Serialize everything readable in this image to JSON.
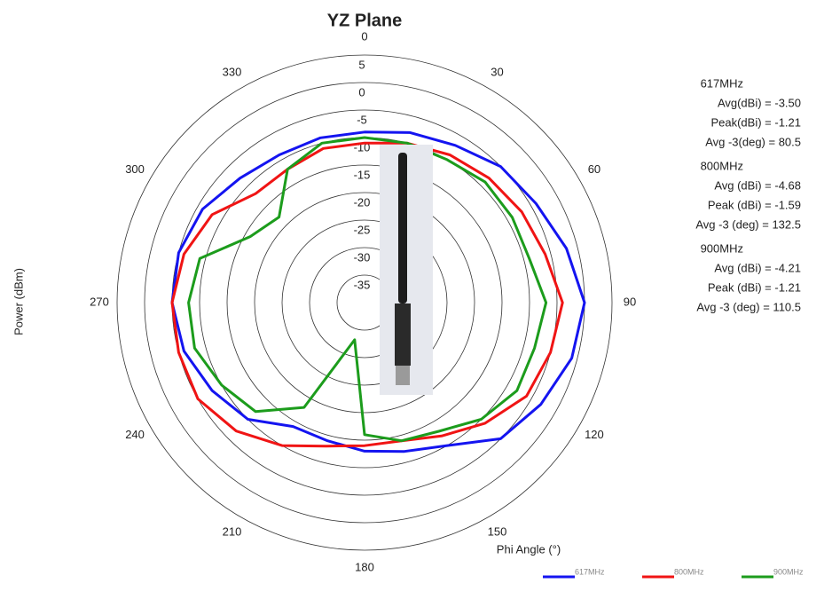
{
  "chart_data": {
    "type": "polar",
    "title": "YZ Plane",
    "ylabel": "Power (dBm)",
    "xlabel": "Phi Angle (°)",
    "theta": [
      0,
      15,
      30,
      45,
      60,
      75,
      90,
      105,
      120,
      135,
      150,
      165,
      180,
      195,
      210,
      225,
      240,
      255,
      270,
      285,
      300,
      315,
      330,
      345
    ],
    "thetaticks": [
      0,
      30,
      60,
      90,
      120,
      150,
      180,
      210,
      240,
      270,
      300,
      330
    ],
    "rlim": [
      -40,
      5
    ],
    "rticks": [
      5,
      0,
      -5,
      -10,
      -15,
      -20,
      -25,
      -30,
      -35
    ],
    "series": [
      {
        "name": "617MHz",
        "color": "#1414f0",
        "values": [
          -9,
          -8,
          -7,
          -5,
          -4,
          -2,
          0,
          -1,
          -3,
          -5,
          -10,
          -12,
          -13,
          -14,
          -14,
          -10,
          -8,
          -6,
          -5,
          -5,
          -6,
          -8,
          -9,
          -9
        ]
      },
      {
        "name": "800MHz",
        "color": "#f01414",
        "values": [
          -11,
          -10,
          -9,
          -8,
          -7,
          -6,
          -4,
          -5,
          -6,
          -9,
          -12,
          -14,
          -14,
          -13,
          -10,
          -7,
          -5,
          -5,
          -5,
          -6,
          -8,
          -12,
          -12,
          -11
        ]
      },
      {
        "name": "900MHz",
        "color": "#1c9c1c",
        "values": [
          -10,
          -10,
          -10,
          -9,
          -9,
          -9,
          -7,
          -8,
          -8,
          -10,
          -13,
          -14,
          -16,
          -33,
          -18,
          -12,
          -10,
          -8,
          -8,
          -9,
          -16,
          -18,
          -12,
          -10
        ]
      }
    ],
    "annotations": [
      {
        "title": "617MHz",
        "lines": [
          "Avg(dBi) = -3.50",
          "Peak(dBi) = -1.21",
          "Avg -3(deg) = 80.5"
        ]
      },
      {
        "title": "800MHz",
        "lines": [
          "Avg (dBi) =  -4.68",
          "Peak (dBi) =  -1.59",
          "Avg -3 (deg) =  132.5"
        ]
      },
      {
        "title": "900MHz",
        "lines": [
          "Avg (dBi) =  -4.21",
          "Peak (dBi) =  -1.21",
          "Avg -3 (deg) =  110.5"
        ]
      }
    ]
  }
}
